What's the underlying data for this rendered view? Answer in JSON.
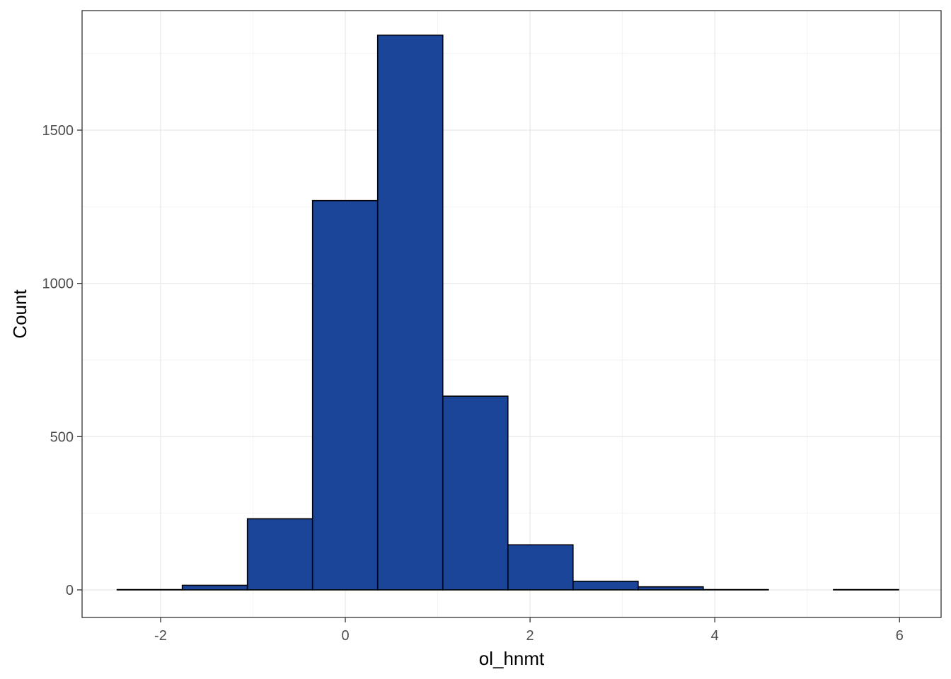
{
  "chart_data": {
    "type": "bar",
    "subtype": "histogram",
    "title": "",
    "xlabel": "ol_hnmt",
    "ylabel": "Count",
    "xlim": [
      -2.85,
      6.45
    ],
    "ylim": [
      -90,
      1890
    ],
    "x_ticks": [
      -2,
      0,
      2,
      4,
      6
    ],
    "y_ticks": [
      0,
      500,
      1000,
      1500
    ],
    "grid": true,
    "bins": [
      {
        "x0": -2.47,
        "x1": -1.765,
        "count": 1
      },
      {
        "x0": -1.765,
        "x1": -1.06,
        "count": 15
      },
      {
        "x0": -1.06,
        "x1": -0.355,
        "count": 232
      },
      {
        "x0": -0.355,
        "x1": 0.35,
        "count": 1270
      },
      {
        "x0": 0.35,
        "x1": 1.055,
        "count": 1810
      },
      {
        "x0": 1.055,
        "x1": 1.76,
        "count": 632
      },
      {
        "x0": 1.76,
        "x1": 2.465,
        "count": 147
      },
      {
        "x0": 2.465,
        "x1": 3.17,
        "count": 28
      },
      {
        "x0": 3.17,
        "x1": 3.875,
        "count": 10
      },
      {
        "x0": 3.875,
        "x1": 4.58,
        "count": 1
      },
      {
        "x0": 4.58,
        "x1": 5.285,
        "count": 0
      },
      {
        "x0": 5.285,
        "x1": 5.99,
        "count": 1
      }
    ]
  },
  "colors": {
    "bar_fill": "#1a4599",
    "bar_stroke": "#000000",
    "grid_major": "#ebebeb",
    "grid_minor": "#f3f3f3",
    "panel_border": "#333333"
  }
}
